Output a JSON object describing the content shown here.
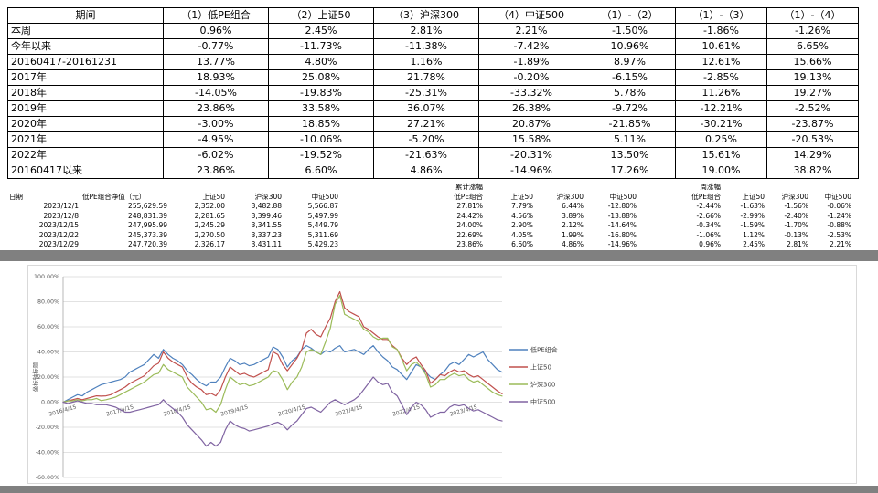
{
  "summary_table": {
    "header": [
      "期间",
      "（1）低PE组合",
      "（2）上证50",
      "（3）沪深300",
      "（4）中证500",
      "（1）-（2）",
      "（1）-（3）",
      "（1）-（4）"
    ],
    "rows": [
      [
        "本周",
        "0.96%",
        "2.45%",
        "2.81%",
        "2.21%",
        "-1.50%",
        "-1.86%",
        "-1.26%"
      ],
      [
        "今年以来",
        "-0.77%",
        "-11.73%",
        "-11.38%",
        "-7.42%",
        "10.96%",
        "10.61%",
        "6.65%"
      ],
      [
        "20160417-20161231",
        "13.77%",
        "4.80%",
        "1.16%",
        "-1.89%",
        "8.97%",
        "12.61%",
        "15.66%"
      ],
      [
        "2017年",
        "18.93%",
        "25.08%",
        "21.78%",
        "-0.20%",
        "-6.15%",
        "-2.85%",
        "19.13%"
      ],
      [
        "2018年",
        "-14.05%",
        "-19.83%",
        "-25.31%",
        "-33.32%",
        "5.78%",
        "11.26%",
        "19.27%"
      ],
      [
        "2019年",
        "23.86%",
        "33.58%",
        "36.07%",
        "26.38%",
        "-9.72%",
        "-12.21%",
        "-2.52%"
      ],
      [
        "2020年",
        "-3.00%",
        "18.85%",
        "27.21%",
        "20.87%",
        "-21.85%",
        "-30.21%",
        "-23.87%"
      ],
      [
        "2021年",
        "-4.95%",
        "-10.06%",
        "-5.20%",
        "15.58%",
        "5.11%",
        "0.25%",
        "-20.53%"
      ],
      [
        "2022年",
        "-6.02%",
        "-19.52%",
        "-21.63%",
        "-20.31%",
        "13.50%",
        "15.61%",
        "14.29%"
      ],
      [
        "20160417以来",
        "23.86%",
        "6.60%",
        "4.86%",
        "-14.96%",
        "17.26%",
        "19.00%",
        "38.82%"
      ]
    ]
  },
  "detail_table": {
    "group_headers": [
      "累计涨幅",
      "周涨幅"
    ],
    "columns": [
      "日期",
      "低PE组合净值（元）",
      "上证50",
      "沪深300",
      "中证500",
      "低PE组合",
      "上证50",
      "沪深300",
      "中证500",
      "低PE组合",
      "上证50",
      "沪深300",
      "中证500"
    ],
    "rows": [
      [
        "2023/12/1",
        "255,629.59",
        "2,352.00",
        "3,482.88",
        "5,566.87",
        "27.81%",
        "7.79%",
        "6.44%",
        "-12.80%",
        "-2.44%",
        "-1.63%",
        "-1.56%",
        "-0.06%"
      ],
      [
        "2023/12/8",
        "248,831.39",
        "2,281.65",
        "3,399.46",
        "5,497.99",
        "24.42%",
        "4.56%",
        "3.89%",
        "-13.88%",
        "-2.66%",
        "-2.99%",
        "-2.40%",
        "-1.24%"
      ],
      [
        "2023/12/15",
        "247,995.99",
        "2,245.29",
        "3,341.55",
        "5,449.79",
        "24.00%",
        "2.90%",
        "2.12%",
        "-14.64%",
        "-0.34%",
        "-1.59%",
        "-1.70%",
        "-0.88%"
      ],
      [
        "2023/12/22",
        "245,373.39",
        "2,270.50",
        "3,337.23",
        "5,311.69",
        "22.69%",
        "4.05%",
        "1.99%",
        "-16.80%",
        "-1.06%",
        "1.12%",
        "-0.13%",
        "-2.53%"
      ],
      [
        "2023/12/29",
        "247,720.39",
        "2,326.17",
        "3,431.11",
        "5,429.23",
        "23.86%",
        "6.60%",
        "4.86%",
        "-14.96%",
        "0.96%",
        "2.45%",
        "2.81%",
        "2.21%"
      ]
    ]
  },
  "chart_data": {
    "type": "line",
    "title": "",
    "ylabel": "坐标轴标题",
    "ylim": [
      -60,
      100
    ],
    "ytick_step": 20,
    "ytick_labels": [
      "100.00%",
      "80.00%",
      "60.00%",
      "40.00%",
      "20.00%",
      "0.00%",
      "-20.00%",
      "-40.00%",
      "-60.00%"
    ],
    "x_tick_labels": [
      "2016/4/15",
      "2017/4/15",
      "2018/4/15",
      "2019/4/15",
      "2020/4/15",
      "2021/4/15",
      "2022/4/15",
      "2023/4/15"
    ],
    "x_unit": "month, 2016/4 through 2023/12",
    "grid": true,
    "legend_position": "right",
    "series": [
      {
        "name": "低PE组合",
        "color": "#4F81BD",
        "values": [
          0,
          2,
          4,
          6,
          5,
          8,
          10,
          12,
          14,
          15,
          16,
          17,
          18,
          20,
          24,
          26,
          28,
          30,
          34,
          38,
          35,
          42,
          38,
          35,
          33,
          30,
          25,
          22,
          18,
          15,
          13,
          16,
          16,
          20,
          28,
          35,
          33,
          30,
          31,
          29,
          30,
          32,
          34,
          36,
          44,
          42,
          36,
          28,
          33,
          36,
          42,
          45,
          43,
          40,
          38,
          41,
          40,
          43,
          45,
          40,
          41,
          42,
          40,
          38,
          42,
          45,
          40,
          36,
          33,
          28,
          26,
          22,
          18,
          24,
          30,
          28,
          24,
          20,
          18,
          22,
          25,
          30,
          32,
          30,
          34,
          38,
          36,
          38,
          40,
          34,
          30,
          26,
          23.9
        ]
      },
      {
        "name": "上证50",
        "color": "#C0504D",
        "values": [
          0,
          1,
          2,
          3,
          2,
          3,
          4,
          5,
          4.8,
          5,
          6,
          8,
          10,
          12,
          15,
          17,
          19,
          21,
          25,
          29,
          31,
          40,
          35,
          32,
          30,
          28,
          20,
          15,
          12,
          10,
          6,
          7,
          5,
          10,
          20,
          28,
          25,
          22,
          23,
          21,
          20,
          22,
          24,
          26,
          40,
          38,
          30,
          25,
          30,
          35,
          42,
          55,
          58,
          54,
          52,
          60,
          67,
          80,
          88,
          75,
          72,
          70,
          68,
          60,
          58,
          55,
          52,
          50,
          50,
          45,
          42,
          35,
          30,
          34,
          36,
          30,
          25,
          15,
          18,
          22,
          21,
          24,
          26,
          24,
          25,
          22,
          20,
          21,
          18,
          15,
          12,
          9,
          6.6
        ]
      },
      {
        "name": "沪深300",
        "color": "#9BBB59",
        "values": [
          0,
          1,
          1,
          2,
          1,
          2,
          2,
          3,
          1.2,
          2,
          3,
          4,
          6,
          8,
          10,
          12,
          14,
          16,
          19,
          22,
          23,
          30,
          26,
          24,
          22,
          20,
          12,
          8,
          4,
          0,
          -6,
          -5,
          -8,
          -2,
          10,
          20,
          17,
          14,
          15,
          13,
          14,
          16,
          18,
          20,
          25,
          24,
          18,
          10,
          16,
          20,
          28,
          40,
          42,
          40,
          38,
          48,
          59,
          78,
          85,
          70,
          68,
          66,
          64,
          58,
          56,
          52,
          50,
          51,
          51,
          44,
          42,
          34,
          25,
          30,
          32,
          28,
          22,
          12,
          14,
          18,
          18,
          21,
          23,
          21,
          22,
          18,
          16,
          17,
          14,
          11,
          8,
          6,
          4.9
        ]
      },
      {
        "name": "中证500",
        "color": "#8064A2",
        "values": [
          0,
          -1,
          0,
          1,
          0,
          -1,
          -1,
          -2,
          -1.9,
          -2,
          -3,
          -4,
          -6,
          -8,
          -8,
          -7,
          -6,
          -5,
          -4,
          -3,
          -2,
          2,
          -2,
          -5,
          -8,
          -12,
          -18,
          -22,
          -26,
          -30,
          -35,
          -32,
          -35,
          -32,
          -22,
          -15,
          -18,
          -20,
          -21,
          -23,
          -22,
          -21,
          -20,
          -19,
          -17,
          -16,
          -18,
          -22,
          -18,
          -15,
          -10,
          -5,
          -4,
          -6,
          -8,
          -4,
          0,
          2,
          0,
          -2,
          0,
          2,
          5,
          10,
          15,
          20,
          16,
          14,
          15,
          8,
          5,
          -2,
          -10,
          -4,
          0,
          -2,
          -6,
          -12,
          -10,
          -8,
          -8,
          -4,
          -2,
          -3,
          -2,
          -5,
          -7,
          -6,
          -8,
          -10,
          -12,
          -14,
          -15
        ]
      }
    ]
  }
}
